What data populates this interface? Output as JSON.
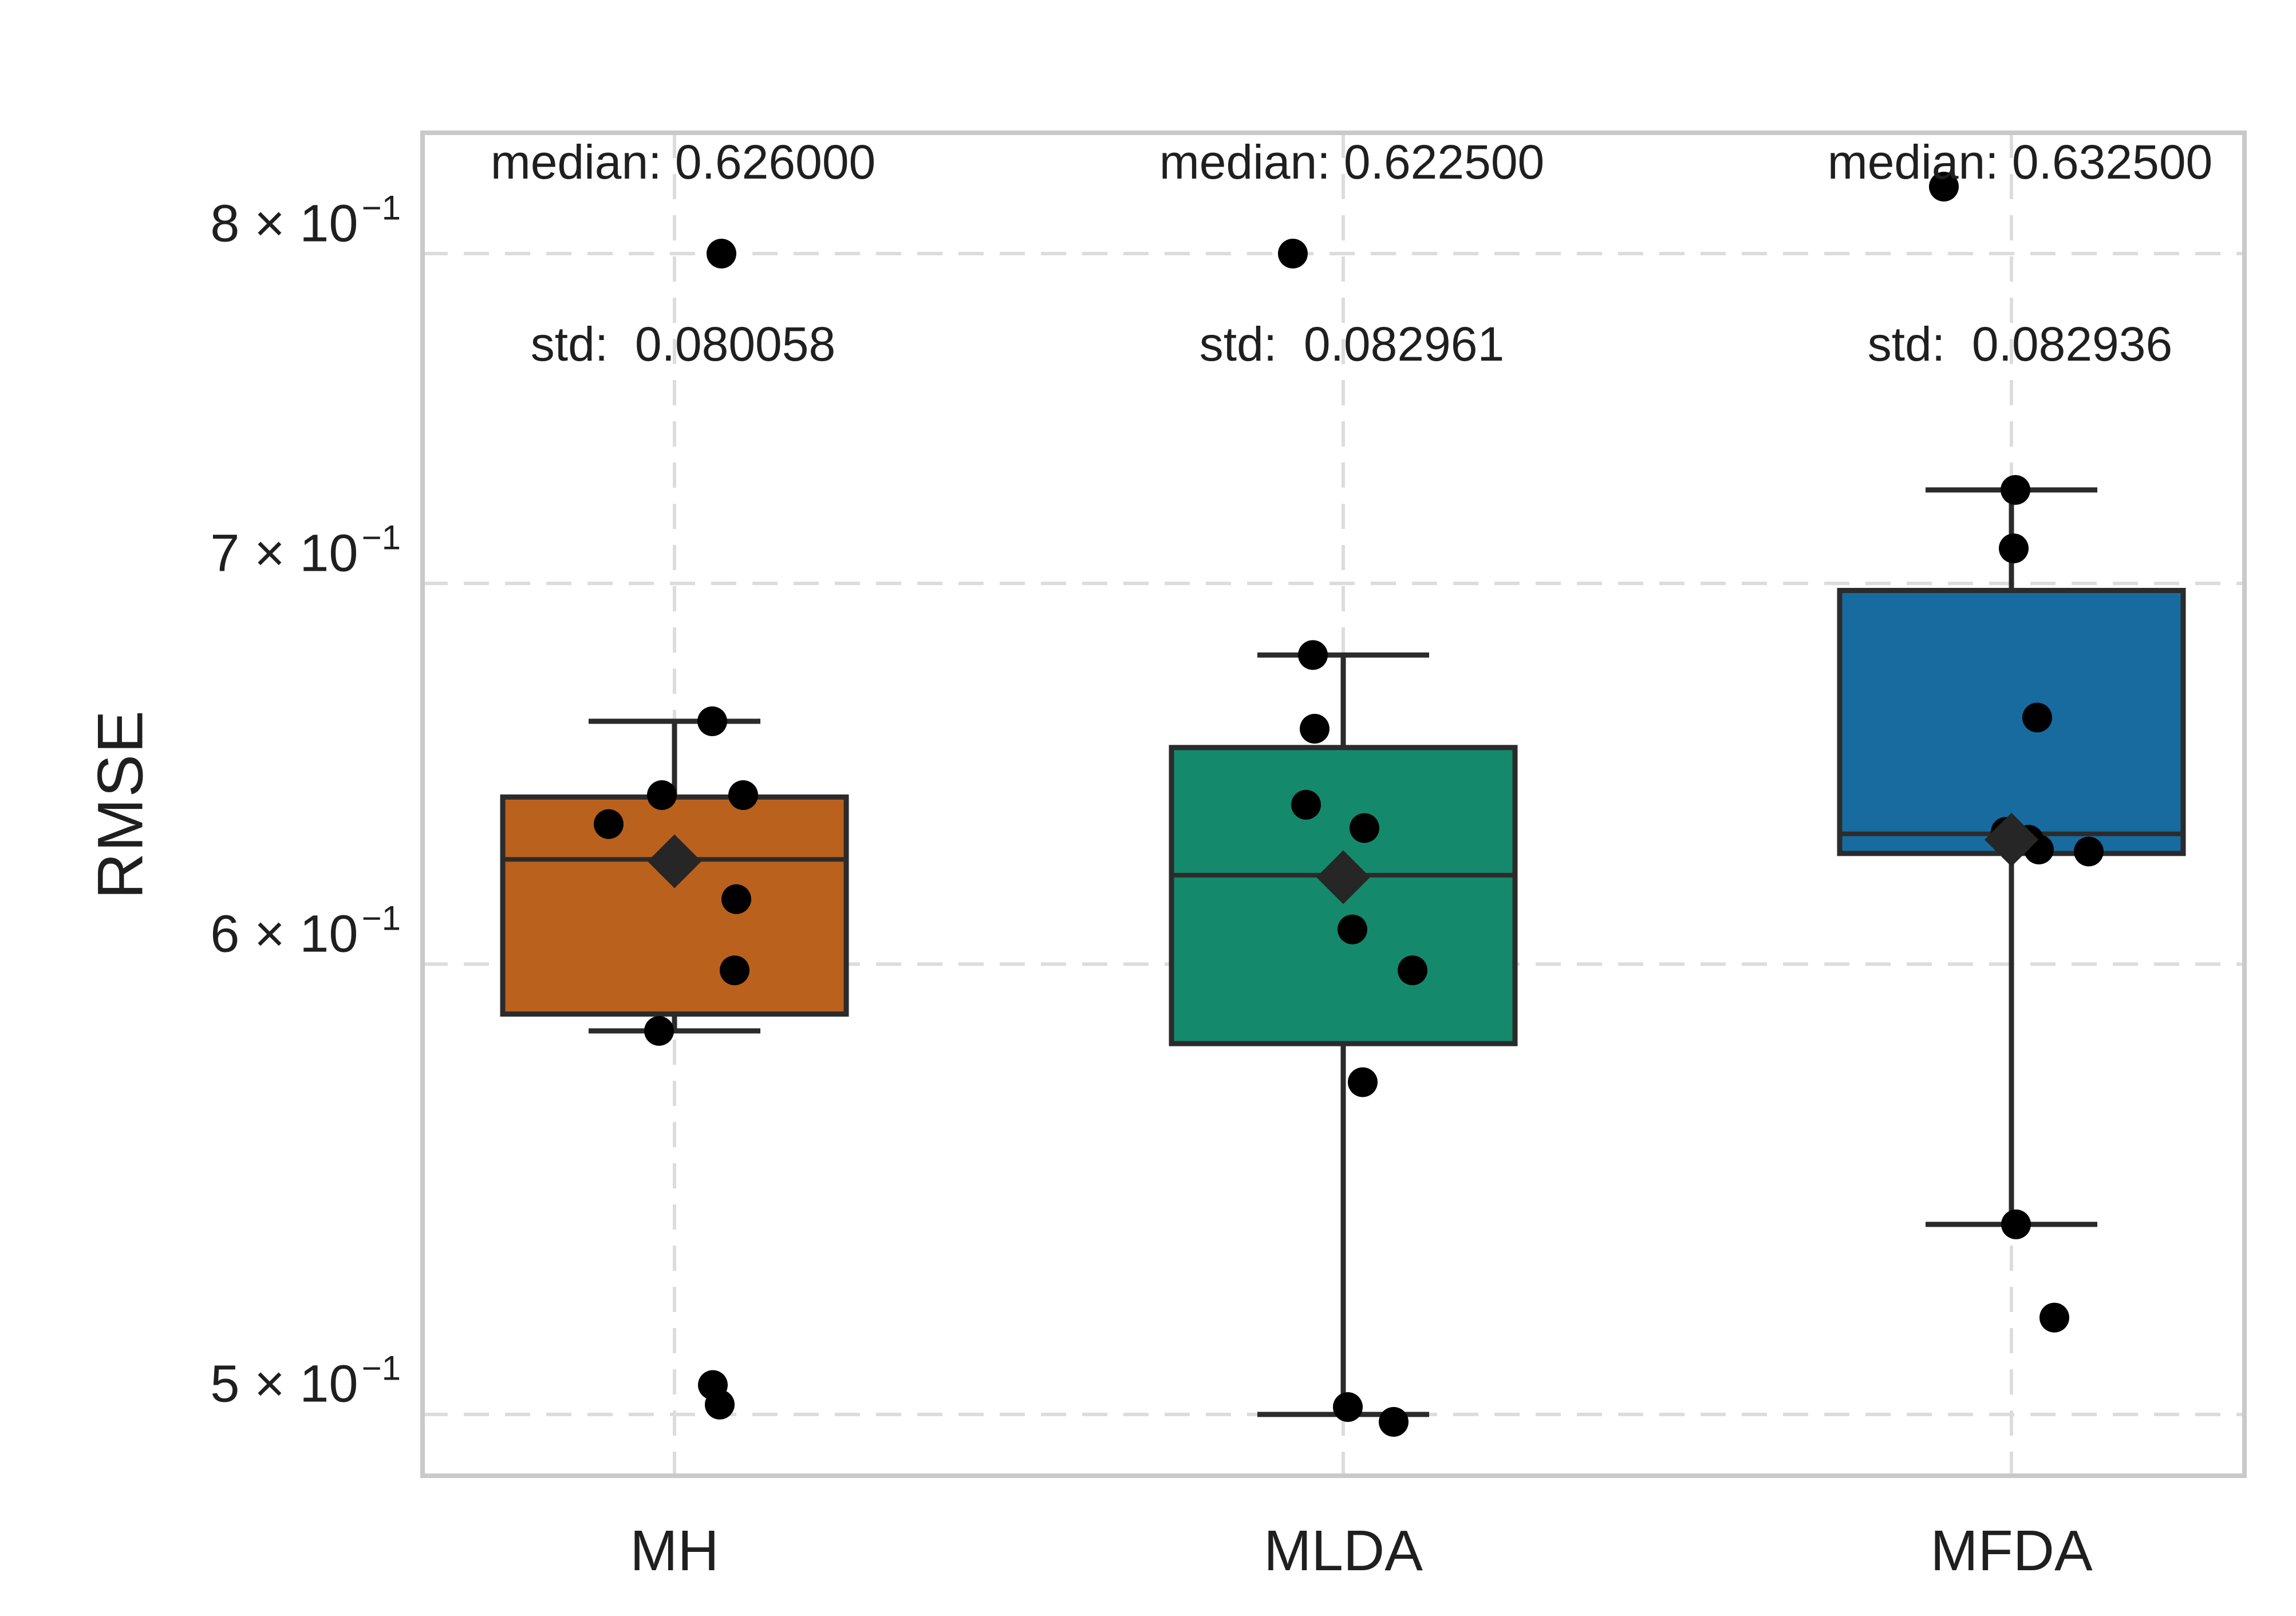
{
  "chart_data": {
    "type": "box",
    "title": "",
    "xlabel": "",
    "ylabel": "RMSE",
    "yscale": "log",
    "ylim": [
      0.488,
      0.84
    ],
    "grid": true,
    "legend": "none",
    "yticks": [
      {
        "value": 0.8,
        "mantissa": "8 × 10",
        "exponent": "−1"
      },
      {
        "value": 0.7,
        "mantissa": "7 × 10",
        "exponent": "−1"
      },
      {
        "value": 0.6,
        "mantissa": "6 × 10",
        "exponent": "−1"
      },
      {
        "value": 0.5,
        "mantissa": "5 × 10",
        "exponent": "−1"
      }
    ],
    "categories": [
      "MH",
      "MLDA",
      "MFDA"
    ],
    "groups": [
      {
        "label": "MH",
        "color": "#ba611e",
        "annotation": {
          "median_label": "median: 0.626000",
          "std_label": "std:  0.080058"
        },
        "median": 0.626,
        "std": 0.080058,
        "box": {
          "whisker_low": 0.584,
          "q1": 0.588,
          "median": 0.626,
          "q3": 0.642,
          "whisker_high": 0.662
        },
        "mean_marker": 0.6255,
        "points": [
          [
            0.8,
            82
          ],
          [
            0.662,
            66
          ],
          [
            0.6425,
            -22
          ],
          [
            0.6425,
            120
          ],
          [
            0.635,
            -115
          ],
          [
            0.616,
            108
          ],
          [
            0.5985,
            105
          ],
          [
            0.584,
            -27
          ],
          [
            0.506,
            67
          ],
          [
            0.502,
            79
          ]
        ]
      },
      {
        "label": "MLDA",
        "color": "#15896b",
        "annotation": {
          "median_label": "median: 0.622500",
          "std_label": "std:  0.082961"
        },
        "median": 0.6225,
        "std": 0.082961,
        "box": {
          "whisker_low": 0.5,
          "q1": 0.581,
          "median": 0.622,
          "q3": 0.655,
          "whisker_high": 0.68
        },
        "mean_marker": 0.6215,
        "points": [
          [
            0.8,
            -88
          ],
          [
            0.68,
            -53
          ],
          [
            0.66,
            -50
          ],
          [
            0.64,
            -65
          ],
          [
            0.634,
            37
          ],
          [
            0.6085,
            16
          ],
          [
            0.5985,
            121
          ],
          [
            0.572,
            34
          ],
          [
            0.5015,
            8
          ],
          [
            0.4985,
            88
          ]
        ]
      },
      {
        "label": "MFDA",
        "color": "#176b9f",
        "annotation": {
          "median_label": "median: 0.632500",
          "std_label": "std:  0.082936"
        },
        "median": 0.6325,
        "std": 0.082936,
        "box": {
          "whisker_low": 0.54,
          "q1": 0.6275,
          "median": 0.6325,
          "q3": 0.698,
          "whisker_high": 0.727
        },
        "mean_marker": 0.631,
        "points": [
          [
            0.822,
            -118
          ],
          [
            0.727,
            7
          ],
          [
            0.71,
            4
          ],
          [
            0.663,
            45
          ],
          [
            0.633,
            -10
          ],
          [
            0.631,
            30
          ],
          [
            0.6285,
            48
          ],
          [
            0.628,
            135
          ],
          [
            0.54,
            8
          ],
          [
            0.52,
            75
          ]
        ]
      }
    ],
    "style": {
      "box_edge_color": "#2b2b2b",
      "point_color": "#000000",
      "mean_marker_color": "#262626",
      "grid_color": "#dcdcdc",
      "spine_color": "#c9c9c9",
      "text_color": "#1f1f1f"
    }
  }
}
